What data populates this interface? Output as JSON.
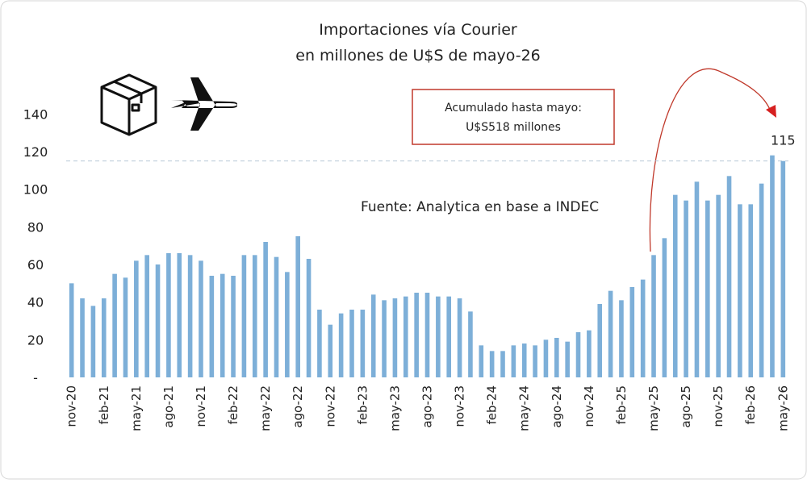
{
  "chart_data": {
    "type": "bar",
    "title": "Importaciones vía Courier",
    "subtitle": "en millones de U$S de mayo-26",
    "annotations": [
      "Acumulado hasta mayo:",
      "U$S518 millones"
    ],
    "source": "Fuente: Analytica en base a INDEC",
    "categories": [
      "nov-20",
      null,
      null,
      "feb-21",
      null,
      null,
      "may-21",
      null,
      null,
      "ago-21",
      null,
      null,
      "nov-21",
      null,
      null,
      "feb-22",
      null,
      null,
      "may-22",
      null,
      null,
      "ago-22",
      null,
      null,
      "nov-22",
      null,
      null,
      "feb-23",
      null,
      null,
      "may-23",
      null,
      null,
      "ago-23",
      null,
      null,
      "nov-23",
      null,
      null,
      "feb-24",
      null,
      null,
      "may-24",
      null,
      null,
      "ago-24",
      null,
      null,
      "nov-24",
      null,
      null,
      "feb-25",
      null,
      null,
      "may-25",
      null,
      null,
      "ago-25",
      null,
      null,
      "nov-25",
      null,
      null,
      "feb-26",
      null,
      null,
      "may-26"
    ],
    "values": [
      50,
      42,
      38,
      42,
      55,
      53,
      62,
      65,
      60,
      66,
      66,
      65,
      62,
      54,
      55,
      54,
      65,
      65,
      72,
      64,
      56,
      75,
      63,
      36,
      28,
      34,
      36,
      36,
      44,
      41,
      42,
      43,
      45,
      45,
      43,
      43,
      42,
      35,
      17,
      14,
      14,
      17,
      18,
      17,
      20,
      21,
      19,
      24,
      25,
      39,
      46,
      41,
      48,
      52,
      65,
      74,
      97,
      94,
      104,
      94,
      97,
      107,
      92,
      92,
      103,
      118,
      115
    ],
    "color": "#7dafd8",
    "ylim": [
      0,
      150
    ],
    "yticks": [
      {
        "value": 0,
        "label": "-"
      },
      20,
      40,
      60,
      80,
      100,
      120,
      140
    ],
    "grid": false
  }
}
